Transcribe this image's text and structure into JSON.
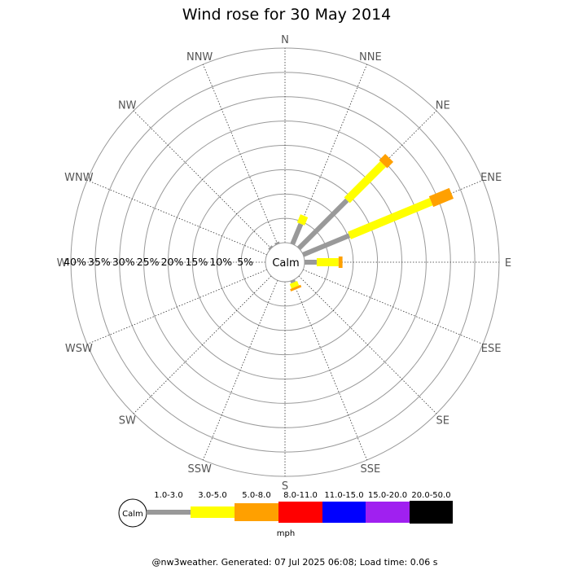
{
  "chart_data": {
    "type": "wind-rose",
    "title": "Wind rose for 30 May 2014",
    "directions": [
      "N",
      "NNE",
      "NE",
      "ENE",
      "E",
      "ESE",
      "SE",
      "SSE",
      "S",
      "SSW",
      "SW",
      "WSW",
      "W",
      "WNW",
      "NW",
      "NNW"
    ],
    "radial_ticks": [
      "40%",
      "35%",
      "30%",
      "25%",
      "20%",
      "15%",
      "10%",
      "5%"
    ],
    "radial_max_percent": 40,
    "center_label": "Calm",
    "units": "mph",
    "speed_bins": [
      {
        "label": "1.0-3.0",
        "color": "#999999"
      },
      {
        "label": "3.0-5.0",
        "color": "#ffff00"
      },
      {
        "label": "5.0-8.0",
        "color": "#ffa000"
      },
      {
        "label": "8.0-11.0",
        "color": "#ff0000"
      },
      {
        "label": "11.0-15.0",
        "color": "#0000ff"
      },
      {
        "label": "15.0-20.0",
        "color": "#a020f0"
      },
      {
        "label": "20.0-50.0",
        "color": "#000000"
      }
    ],
    "frequencies_percent": {
      "N": [
        0,
        0,
        0,
        0,
        0,
        0,
        0
      ],
      "NNE": [
        4.5,
        1.8,
        0,
        0,
        0,
        0,
        0
      ],
      "NE": [
        14.0,
        10.5,
        1.8,
        0,
        0,
        0,
        0
      ],
      "ENE": [
        10.3,
        18.2,
        4.5,
        0,
        0,
        0,
        0
      ],
      "E": [
        2.5,
        4.5,
        0.8,
        0,
        0,
        0,
        0
      ],
      "ESE": [
        0,
        0,
        0,
        0,
        0,
        0,
        0
      ],
      "SE": [
        0,
        0,
        0,
        0,
        0,
        0,
        0
      ],
      "SSE": [
        0.5,
        1.0,
        0.5,
        0,
        0,
        0,
        0
      ],
      "S": [
        0,
        0,
        0,
        0,
        0,
        0,
        0
      ],
      "SSW": [
        0,
        0,
        0,
        0,
        0,
        0,
        0
      ],
      "SW": [
        0,
        0,
        0,
        0,
        0,
        0,
        0
      ],
      "WSW": [
        0,
        0,
        0,
        0,
        0,
        0,
        0
      ],
      "W": [
        0,
        0,
        0,
        0,
        0,
        0,
        0
      ],
      "WNW": [
        0,
        0,
        0,
        0,
        0,
        0,
        0
      ],
      "NW": [
        0.4,
        0,
        0,
        0,
        0,
        0,
        0
      ],
      "NNW": [
        0.4,
        0,
        0,
        0,
        0,
        0,
        0
      ]
    },
    "grid": true
  },
  "footer": "@nw3weather. Generated: 07 Jul 2025 06:08; Load time: 0.06 s"
}
